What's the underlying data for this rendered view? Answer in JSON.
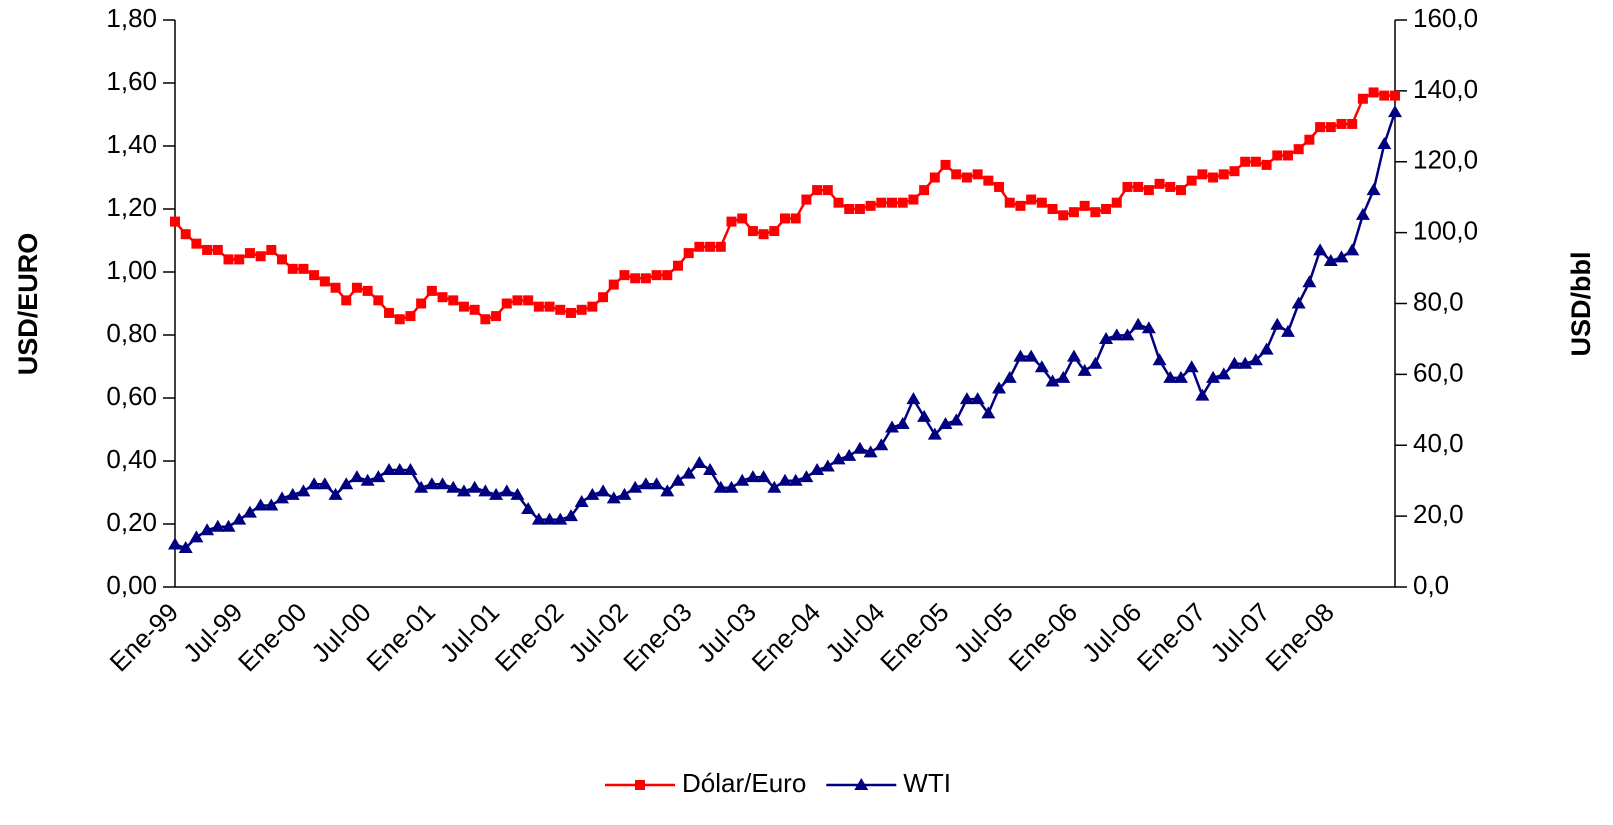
{
  "chart_data": {
    "type": "line",
    "categories": [
      "Ene-99",
      null,
      null,
      null,
      null,
      null,
      "Jul-99",
      null,
      null,
      null,
      null,
      null,
      "Ene-00",
      null,
      null,
      null,
      null,
      null,
      "Jul-00",
      null,
      null,
      null,
      null,
      null,
      "Ene-01",
      null,
      null,
      null,
      null,
      null,
      "Jul-01",
      null,
      null,
      null,
      null,
      null,
      "Ene-02",
      null,
      null,
      null,
      null,
      null,
      "Jul-02",
      null,
      null,
      null,
      null,
      null,
      "Ene-03",
      null,
      null,
      null,
      null,
      null,
      "Jul-03",
      null,
      null,
      null,
      null,
      null,
      "Ene-04",
      null,
      null,
      null,
      null,
      null,
      "Jul-04",
      null,
      null,
      null,
      null,
      null,
      "Ene-05",
      null,
      null,
      null,
      null,
      null,
      "Jul-05",
      null,
      null,
      null,
      null,
      null,
      "Ene-06",
      null,
      null,
      null,
      null,
      null,
      "Jul-06",
      null,
      null,
      null,
      null,
      null,
      "Ene-07",
      null,
      null,
      null,
      null,
      null,
      "Jul-07",
      null,
      null,
      null,
      null,
      null,
      "Ene-08",
      null,
      null,
      null,
      null,
      null,
      null
    ],
    "series": [
      {
        "name": "Dólar/Euro",
        "color": "#ff0000",
        "marker": "square",
        "axis": "y",
        "values": [
          1.16,
          1.12,
          1.09,
          1.07,
          1.07,
          1.04,
          1.04,
          1.06,
          1.05,
          1.07,
          1.04,
          1.01,
          1.01,
          0.99,
          0.97,
          0.95,
          0.91,
          0.95,
          0.94,
          0.91,
          0.87,
          0.85,
          0.86,
          0.9,
          0.94,
          0.92,
          0.91,
          0.89,
          0.88,
          0.85,
          0.86,
          0.9,
          0.91,
          0.91,
          0.89,
          0.89,
          0.88,
          0.87,
          0.88,
          0.89,
          0.92,
          0.96,
          0.99,
          0.98,
          0.98,
          0.99,
          0.99,
          1.02,
          1.06,
          1.08,
          1.08,
          1.08,
          1.16,
          1.17,
          1.13,
          1.12,
          1.13,
          1.17,
          1.17,
          1.23,
          1.26,
          1.26,
          1.22,
          1.2,
          1.2,
          1.21,
          1.22,
          1.22,
          1.22,
          1.23,
          1.26,
          1.3,
          1.34,
          1.31,
          1.3,
          1.31,
          1.29,
          1.27,
          1.22,
          1.21,
          1.23,
          1.22,
          1.2,
          1.18,
          1.19,
          1.21,
          1.19,
          1.2,
          1.22,
          1.27,
          1.27,
          1.26,
          1.28,
          1.27,
          1.26,
          1.29,
          1.31,
          1.3,
          1.31,
          1.32,
          1.35,
          1.35,
          1.34,
          1.37,
          1.37,
          1.39,
          1.42,
          1.46,
          1.46,
          1.47,
          1.47,
          1.55,
          1.57,
          1.56,
          1.56
        ]
      },
      {
        "name": "WTI",
        "color": "#000080",
        "marker": "triangle",
        "axis": "y2",
        "values": [
          12,
          11,
          14,
          16,
          17,
          17,
          19,
          21,
          23,
          23,
          25,
          26,
          27,
          29,
          29,
          26,
          29,
          31,
          30,
          31,
          33,
          33,
          33,
          28,
          29,
          29,
          28,
          27,
          28,
          27,
          26,
          27,
          26,
          22,
          19,
          19,
          19,
          20,
          24,
          26,
          27,
          25,
          26,
          28,
          29,
          29,
          27,
          30,
          32,
          35,
          33,
          28,
          28,
          30,
          31,
          31,
          28,
          30,
          30,
          31,
          33,
          34,
          36,
          37,
          39,
          38,
          40,
          45,
          46,
          53,
          48,
          43,
          46,
          47,
          53,
          53,
          49,
          56,
          59,
          65,
          65,
          62,
          58,
          59,
          65,
          61,
          63,
          70,
          71,
          71,
          74,
          73,
          64,
          59,
          59,
          62,
          54,
          59,
          60,
          63,
          63,
          64,
          67,
          74,
          72,
          80,
          86,
          95,
          92,
          93,
          95,
          105,
          112,
          125,
          134
        ]
      }
    ],
    "ylabel": "USD/EURO",
    "y2label": "USD/bbl",
    "ylim": [
      0,
      1.8
    ],
    "yticks": [
      {
        "value": 0,
        "label": "0,00"
      },
      {
        "value": 0.2,
        "label": "0,20"
      },
      {
        "value": 0.4,
        "label": "0,40"
      },
      {
        "value": 0.6,
        "label": "0,60"
      },
      {
        "value": 0.8,
        "label": "0,80"
      },
      {
        "value": 1.0,
        "label": "1,00"
      },
      {
        "value": 1.2,
        "label": "1,20"
      },
      {
        "value": 1.4,
        "label": "1,40"
      },
      {
        "value": 1.6,
        "label": "1,60"
      },
      {
        "value": 1.8,
        "label": "1,80"
      }
    ],
    "y2lim": [
      0,
      160
    ],
    "y2ticks": [
      {
        "value": 0,
        "label": "0,0"
      },
      {
        "value": 20,
        "label": "20,0"
      },
      {
        "value": 40,
        "label": "40,0"
      },
      {
        "value": 60,
        "label": "60,0"
      },
      {
        "value": 80,
        "label": "80,0"
      },
      {
        "value": 100,
        "label": "100,0"
      },
      {
        "value": 120,
        "label": "120,0"
      },
      {
        "value": 140,
        "label": "140,0"
      },
      {
        "value": 160,
        "label": "160,0"
      }
    ],
    "legend": "bottom"
  }
}
